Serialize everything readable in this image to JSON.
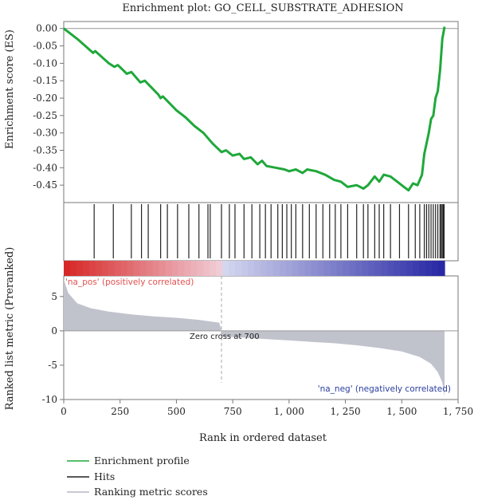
{
  "chart_data": {
    "type": "line",
    "title": "Enrichment plot: GO_CELL_SUBSTRATE_ADHESION",
    "xlabel": "Rank in ordered dataset",
    "xlim": [
      0,
      1750
    ],
    "x_ticks": [
      0,
      250,
      500,
      750,
      1000,
      1250,
      1500,
      1750
    ],
    "x_tick_labels": [
      "0",
      "250",
      "500",
      "750",
      "1, 000",
      "1, 250",
      "1, 500",
      "1, 750"
    ],
    "es_panel": {
      "ylabel": "Enrichment score (ES)",
      "ylim": [
        -0.5,
        0.02
      ],
      "y_ticks": [
        0.0,
        -0.05,
        -0.1,
        -0.15,
        -0.2,
        -0.25,
        -0.3,
        -0.35,
        -0.4,
        -0.45
      ],
      "y_tick_labels": [
        "0.00",
        "-0.05",
        "-0.10",
        "-0.15",
        "-0.20",
        "-0.25",
        "-0.30",
        "-0.35",
        "-0.40",
        "-0.45"
      ],
      "series": [
        {
          "name": "Enrichment profile",
          "color": "#1fa83a",
          "points": [
            [
              0,
              0.0
            ],
            [
              60,
              -0.03
            ],
            [
              130,
              -0.07
            ],
            [
              140,
              -0.065
            ],
            [
              200,
              -0.1
            ],
            [
              225,
              -0.11
            ],
            [
              240,
              -0.105
            ],
            [
              280,
              -0.13
            ],
            [
              300,
              -0.125
            ],
            [
              340,
              -0.155
            ],
            [
              360,
              -0.15
            ],
            [
              420,
              -0.19
            ],
            [
              430,
              -0.2
            ],
            [
              440,
              -0.195
            ],
            [
              500,
              -0.235
            ],
            [
              540,
              -0.255
            ],
            [
              580,
              -0.28
            ],
            [
              620,
              -0.3
            ],
            [
              660,
              -0.33
            ],
            [
              700,
              -0.355
            ],
            [
              720,
              -0.35
            ],
            [
              750,
              -0.365
            ],
            [
              780,
              -0.36
            ],
            [
              800,
              -0.375
            ],
            [
              830,
              -0.37
            ],
            [
              860,
              -0.39
            ],
            [
              880,
              -0.38
            ],
            [
              900,
              -0.395
            ],
            [
              940,
              -0.4
            ],
            [
              980,
              -0.405
            ],
            [
              1000,
              -0.41
            ],
            [
              1030,
              -0.405
            ],
            [
              1060,
              -0.415
            ],
            [
              1080,
              -0.405
            ],
            [
              1120,
              -0.41
            ],
            [
              1160,
              -0.42
            ],
            [
              1200,
              -0.435
            ],
            [
              1230,
              -0.44
            ],
            [
              1260,
              -0.455
            ],
            [
              1300,
              -0.45
            ],
            [
              1330,
              -0.46
            ],
            [
              1350,
              -0.45
            ],
            [
              1380,
              -0.425
            ],
            [
              1400,
              -0.44
            ],
            [
              1420,
              -0.42
            ],
            [
              1450,
              -0.425
            ],
            [
              1480,
              -0.44
            ],
            [
              1510,
              -0.455
            ],
            [
              1530,
              -0.465
            ],
            [
              1550,
              -0.445
            ],
            [
              1570,
              -0.45
            ],
            [
              1590,
              -0.42
            ],
            [
              1600,
              -0.36
            ],
            [
              1620,
              -0.3
            ],
            [
              1630,
              -0.26
            ],
            [
              1640,
              -0.25
            ],
            [
              1650,
              -0.2
            ],
            [
              1660,
              -0.18
            ],
            [
              1670,
              -0.12
            ],
            [
              1680,
              -0.03
            ],
            [
              1690,
              0.005
            ]
          ]
        }
      ]
    },
    "hits_panel": {
      "legend_name": "Hits",
      "color": "#222222",
      "positions": [
        135,
        220,
        300,
        345,
        375,
        430,
        460,
        505,
        555,
        600,
        640,
        650,
        700,
        735,
        760,
        800,
        835,
        870,
        895,
        920,
        950,
        970,
        990,
        1010,
        1030,
        1060,
        1090,
        1120,
        1150,
        1180,
        1205,
        1230,
        1260,
        1300,
        1330,
        1350,
        1380,
        1400,
        1420,
        1450,
        1490,
        1530,
        1560,
        1580,
        1600,
        1610,
        1620,
        1630,
        1640,
        1650,
        1660,
        1670,
        1675,
        1680,
        1685,
        1688
      ]
    },
    "rank_panel": {
      "ylabel": "Ranked list metric (Preranked)",
      "ylim": [
        -10,
        8
      ],
      "y_ticks": [
        5,
        0,
        -5,
        -10
      ],
      "y_tick_labels": [
        "5",
        "0",
        "-5",
        "-10"
      ],
      "zero_cross": 700,
      "zero_cross_label": "Zero cross at 700",
      "pos_label": "'na_pos' (positively correlated)",
      "neg_label": "'na_neg' (negatively correlated)",
      "pos_color": "#e05050",
      "neg_color": "#2a3ea0",
      "fill_color": "#c0c3cc",
      "metric_profile": [
        [
          0,
          7.5
        ],
        [
          20,
          5.5
        ],
        [
          60,
          4.0
        ],
        [
          120,
          3.3
        ],
        [
          200,
          2.8
        ],
        [
          300,
          2.4
        ],
        [
          400,
          2.1
        ],
        [
          500,
          1.9
        ],
        [
          600,
          1.6
        ],
        [
          690,
          1.2
        ],
        [
          700,
          0.0
        ],
        [
          701,
          -0.8
        ],
        [
          800,
          -1.0
        ],
        [
          900,
          -1.2
        ],
        [
          1000,
          -1.4
        ],
        [
          1100,
          -1.6
        ],
        [
          1200,
          -1.8
        ],
        [
          1300,
          -2.1
        ],
        [
          1400,
          -2.5
        ],
        [
          1500,
          -3.0
        ],
        [
          1580,
          -3.8
        ],
        [
          1630,
          -4.8
        ],
        [
          1660,
          -6.0
        ],
        [
          1680,
          -7.5
        ],
        [
          1690,
          -9.5
        ],
        [
          1690,
          0
        ]
      ]
    },
    "legend": [
      {
        "label": "Enrichment profile",
        "color": "#1fa83a"
      },
      {
        "label": "Hits",
        "color": "#222222"
      },
      {
        "label": "Ranking metric scores",
        "color": "#c0c3cc"
      }
    ]
  }
}
